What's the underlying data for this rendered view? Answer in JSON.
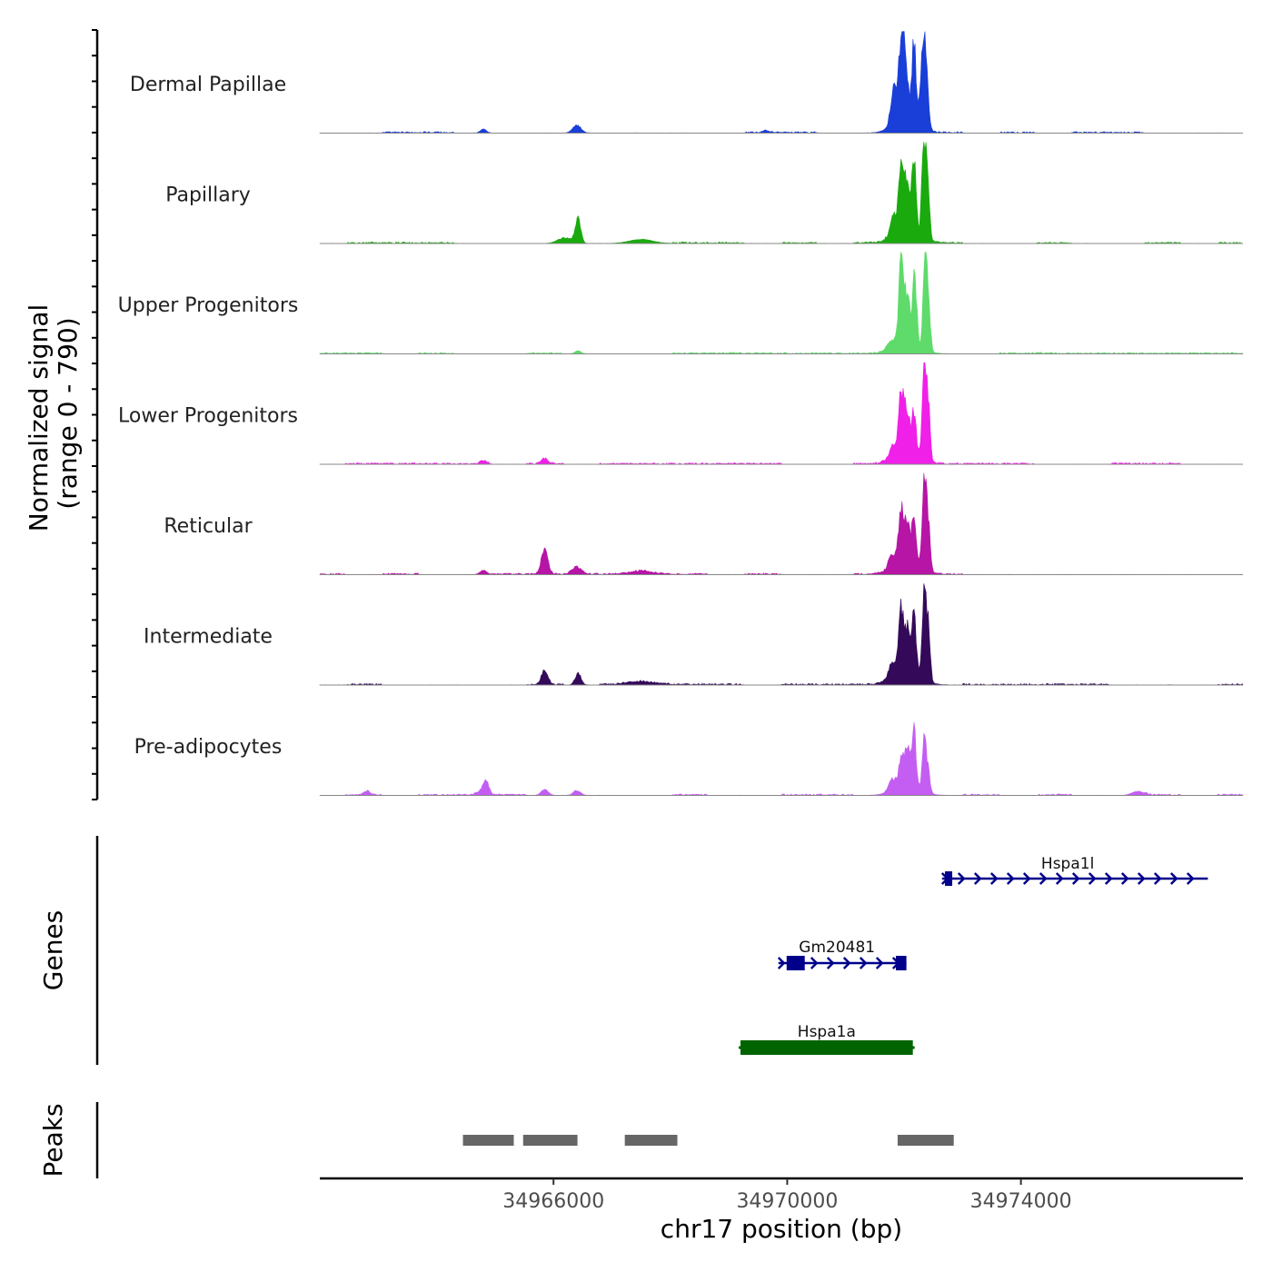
{
  "chart_data": {
    "type": "area",
    "ylabel_line1": "Normalized signal",
    "ylabel_line2": "(range 0 - 790)",
    "yrange": [
      0,
      790
    ],
    "xlabel": "chr17 position (bp)",
    "xlim": [
      34962000,
      34977800
    ],
    "xticks": [
      34966000,
      34970000,
      34974000
    ],
    "xtick_labels": [
      "34966000",
      "34970000",
      "34974000"
    ],
    "baseline_color": "#888888",
    "tracks": [
      {
        "name": "Dermal Papillae",
        "color": "#1a3ed8",
        "peaks": [
          [
            34971820,
            34,
            50
          ],
          [
            34971950,
            78,
            38
          ],
          [
            34972020,
            52,
            45
          ],
          [
            34972170,
            79,
            35
          ],
          [
            34972320,
            74,
            40
          ],
          [
            34972380,
            55,
            35
          ],
          [
            34972040,
            20,
            200
          ],
          [
            34966400,
            8,
            70
          ],
          [
            34964800,
            4,
            50
          ],
          [
            34969650,
            2,
            60
          ]
        ]
      },
      {
        "name": "Papillary",
        "color": "#1aaa0e",
        "peaks": [
          [
            34971820,
            20,
            60
          ],
          [
            34971950,
            66,
            40
          ],
          [
            34972050,
            56,
            45
          ],
          [
            34972170,
            75,
            35
          ],
          [
            34972340,
            98,
            35
          ],
          [
            34972410,
            55,
            30
          ],
          [
            34972050,
            12,
            220
          ],
          [
            34966420,
            26,
            45
          ],
          [
            34966200,
            6,
            120
          ],
          [
            34967500,
            4,
            200
          ]
        ]
      },
      {
        "name": "Upper Progenitors",
        "color": "#5edb6a",
        "peaks": [
          [
            34971780,
            8,
            60
          ],
          [
            34971950,
            80,
            40
          ],
          [
            34972050,
            48,
            45
          ],
          [
            34972180,
            74,
            35
          ],
          [
            34972360,
            106,
            30
          ],
          [
            34972420,
            50,
            30
          ],
          [
            34972050,
            12,
            220
          ],
          [
            34966420,
            3,
            50
          ]
        ]
      },
      {
        "name": "Lower Progenitors",
        "color": "#f020e8",
        "peaks": [
          [
            34971820,
            12,
            60
          ],
          [
            34971950,
            60,
            40
          ],
          [
            34972050,
            42,
            45
          ],
          [
            34972170,
            42,
            35
          ],
          [
            34972350,
            92,
            35
          ],
          [
            34972420,
            48,
            30
          ],
          [
            34972050,
            14,
            220
          ],
          [
            34965850,
            5,
            60
          ],
          [
            34964800,
            3,
            60
          ]
        ]
      },
      {
        "name": "Reticular",
        "color": "#b615a6",
        "peaks": [
          [
            34971800,
            14,
            60
          ],
          [
            34971950,
            55,
            40
          ],
          [
            34972050,
            44,
            45
          ],
          [
            34972170,
            47,
            35
          ],
          [
            34972350,
            93,
            35
          ],
          [
            34972420,
            40,
            30
          ],
          [
            34972050,
            14,
            220
          ],
          [
            34965850,
            25,
            55
          ],
          [
            34966400,
            7,
            80
          ],
          [
            34964800,
            4,
            60
          ],
          [
            34967500,
            3,
            200
          ]
        ]
      },
      {
        "name": "Intermediate",
        "color": "#34095a",
        "peaks": [
          [
            34971800,
            16,
            60
          ],
          [
            34971950,
            60,
            40
          ],
          [
            34972050,
            42,
            45
          ],
          [
            34972170,
            57,
            35
          ],
          [
            34972350,
            90,
            35
          ],
          [
            34972420,
            50,
            30
          ],
          [
            34972050,
            16,
            220
          ],
          [
            34965850,
            14,
            55
          ],
          [
            34966420,
            12,
            50
          ],
          [
            34967500,
            3,
            250
          ]
        ]
      },
      {
        "name": "Pre-adipocytes",
        "color": "#c45ef2",
        "peaks": [
          [
            34971800,
            12,
            60
          ],
          [
            34971950,
            30,
            40
          ],
          [
            34972050,
            38,
            45
          ],
          [
            34972170,
            56,
            35
          ],
          [
            34972350,
            52,
            35
          ],
          [
            34972420,
            18,
            30
          ],
          [
            34972050,
            10,
            220
          ],
          [
            34964850,
            12,
            50
          ],
          [
            34964750,
            4,
            60
          ],
          [
            34965850,
            6,
            60
          ],
          [
            34966400,
            5,
            60
          ],
          [
            34962800,
            4,
            50
          ],
          [
            34976000,
            4,
            100
          ]
        ]
      }
    ],
    "genes_label": "Genes",
    "genes": [
      {
        "name": "Hspa1l",
        "start": 34972650,
        "end": 34977200,
        "color": "#00008b",
        "strand": "+",
        "exons": [
          [
            34972700,
            34972820
          ]
        ]
      },
      {
        "name": "Gm20481",
        "start": 34969850,
        "end": 34972040,
        "color": "#00008b",
        "strand": "+",
        "exons": [
          [
            34969990,
            34970300
          ],
          [
            34971860,
            34972040
          ]
        ]
      },
      {
        "name": "Hspa1a",
        "start": 34969200,
        "end": 34972150,
        "color": "#006400",
        "strand": "-",
        "exons": [
          [
            34969200,
            34972150
          ]
        ]
      }
    ],
    "peaks_label": "Peaks",
    "peak_regions": [
      [
        34964450,
        34965320
      ],
      [
        34965480,
        34966410
      ],
      [
        34967220,
        34968120
      ],
      [
        34971890,
        34972850
      ]
    ],
    "peak_color": "#666666"
  }
}
